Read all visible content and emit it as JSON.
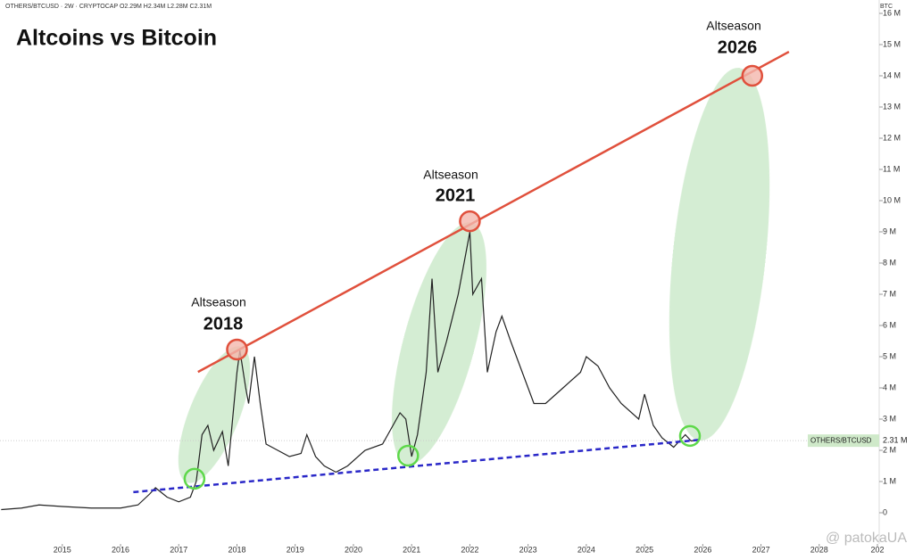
{
  "chart_data": {
    "type": "line",
    "header": "OTHERS/BTCUSD · 2W · CRYPTOCAP  O2.29M  H2.34M  L2.28M  C2.31M",
    "title": "Altcoins vs Bitcoin",
    "y_unit": "BTC",
    "annotations": [
      "Altseason",
      "2018",
      "Altseason",
      "2021",
      "Altseason",
      "2026"
    ],
    "watermark": "@ patokaUA",
    "xlim": [
      2013.93,
      2029.03
    ],
    "ylim": [
      0,
      16400000
    ],
    "xticks": [
      2015,
      2016,
      2017,
      2018,
      2019,
      2020,
      2021,
      2022,
      2023,
      2024,
      2025,
      2026,
      2027,
      2028,
      {
        "value": 2029,
        "label": "202"
      }
    ],
    "yticks": [
      0,
      {
        "value": 1000000,
        "label": "1 M"
      },
      {
        "value": 2000000,
        "label": "2 M"
      },
      {
        "value": 3000000,
        "label": "3 M"
      },
      {
        "value": 4000000,
        "label": "4 M"
      },
      {
        "value": 5000000,
        "label": "5 M"
      },
      {
        "value": 6000000,
        "label": "6 M"
      },
      {
        "value": 7000000,
        "label": "7 M"
      },
      {
        "value": 8000000,
        "label": "8 M"
      },
      {
        "value": 9000000,
        "label": "9 M"
      },
      {
        "value": 10000000,
        "label": "10 M"
      },
      {
        "value": 11000000,
        "label": "11 M"
      },
      {
        "value": 12000000,
        "label": "12 M"
      },
      {
        "value": 13000000,
        "label": "13 M"
      },
      {
        "value": 14000000,
        "label": "14 M"
      },
      {
        "value": 15000000,
        "label": "15 M"
      },
      {
        "value": 16000000,
        "label": "16 M"
      }
    ],
    "x": [
      2013.95,
      2014.3,
      2014.6,
      2015,
      2015.5,
      2016,
      2016.3,
      2016.5,
      2016.6,
      2016.8,
      2017.0,
      2017.2,
      2017.3,
      2017.4,
      2017.5,
      2017.6,
      2017.75,
      2017.85,
      2018.0,
      2018.05,
      2018.15,
      2018.2,
      2018.3,
      2018.4,
      2018.5,
      2018.7,
      2018.9,
      2019.1,
      2019.2,
      2019.35,
      2019.5,
      2019.7,
      2019.9,
      2020.2,
      2020.5,
      2020.8,
      2020.9,
      2021.0,
      2021.1,
      2021.25,
      2021.35,
      2021.45,
      2021.6,
      2021.8,
      2021.95,
      2022.0,
      2022.05,
      2022.2,
      2022.3,
      2022.45,
      2022.55,
      2022.7,
      2022.9,
      2023.1,
      2023.3,
      2023.6,
      2023.9,
      2024.0,
      2024.2,
      2024.4,
      2024.6,
      2024.9,
      2025.0,
      2025.15,
      2025.3,
      2025.5,
      2025.7,
      2025.8,
      2025.85
    ],
    "series": [
      {
        "name": "OTHERS/BTCUSD",
        "color": "#222222",
        "values": [
          100000,
          150000,
          250000,
          200000,
          150000,
          150000,
          250000,
          600000,
          800000,
          500000,
          350000,
          500000,
          1000000,
          2500000,
          2800000,
          2000000,
          2600000,
          1500000,
          4500000,
          5200000,
          4000000,
          3500000,
          5000000,
          3500000,
          2200000,
          2000000,
          1800000,
          1900000,
          2500000,
          1800000,
          1500000,
          1300000,
          1500000,
          2000000,
          2200000,
          3200000,
          3000000,
          1800000,
          2500000,
          4500000,
          7500000,
          4500000,
          5500000,
          7000000,
          8500000,
          9000000,
          7000000,
          7500000,
          4500000,
          5800000,
          6300000,
          5500000,
          4500000,
          3500000,
          3500000,
          4000000,
          4500000,
          5000000,
          4700000,
          4000000,
          3500000,
          3000000,
          3800000,
          2800000,
          2400000,
          2100000,
          2500000,
          2300000,
          2310000
        ]
      }
    ],
    "last_price": 2310000,
    "last_price_label": "2.31 M",
    "lines": [
      {
        "color": "#e0503c",
        "dash": false,
        "x": [
          2017.33,
          2027.48
        ],
        "values": [
          4510000,
          14770000
        ]
      },
      {
        "color": "#2a28c8",
        "dash": true,
        "x": [
          2016.22,
          2025.97
        ],
        "values": [
          660000,
          2340000
        ]
      }
    ],
    "markers": [
      {
        "color": "#e0503c",
        "fill": "#f4b6ac",
        "x": [
          2018.0,
          2022.0,
          2026.85
        ],
        "values": [
          5230000,
          9340000,
          14000000
        ]
      },
      {
        "color": "#5ed84a",
        "fill": "none",
        "x": [
          2017.27,
          2020.94,
          2025.78
        ],
        "values": [
          1090000,
          1830000,
          2460000
        ]
      }
    ]
  }
}
